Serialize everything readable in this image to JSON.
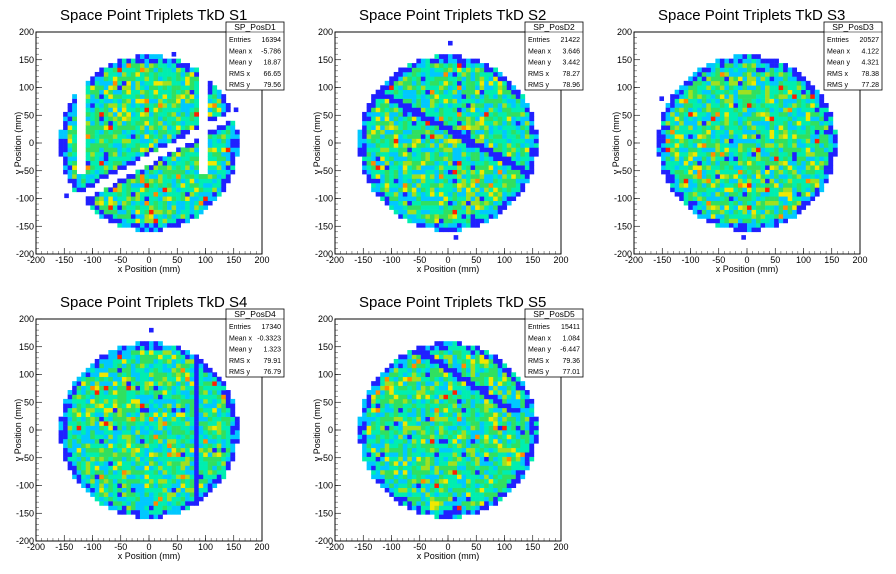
{
  "colors": {
    "palette": [
      "#2020ff",
      "#00c8ff",
      "#00eeb0",
      "#30e060",
      "#a0e020",
      "#f0e800",
      "#ff8c00",
      "#ff2000"
    ],
    "frame": "#000000",
    "background": "#ffffff"
  },
  "chart_data": [
    {
      "type": "heatmap",
      "title": "Space Point Triplets TkD S1",
      "xlabel": "x Position (mm)",
      "ylabel": "y Position (mm)",
      "xlim": [
        -200,
        200
      ],
      "ylim": [
        -200,
        200
      ],
      "xticks": [
        "-200",
        "-150",
        "-100",
        "-50",
        "0",
        "50",
        "100",
        "150",
        "200"
      ],
      "yticks": [
        "-200",
        "-150",
        "-100",
        "-50",
        "0",
        "50",
        "100",
        "150",
        "200"
      ],
      "stats": {
        "name": "SP_PosD1",
        "rows": [
          {
            "label": "Entries",
            "value": "16394"
          },
          {
            "label": "Mean x",
            "value": "-5.786"
          },
          {
            "label": "Mean y",
            "value": "18.87"
          },
          {
            "label": "RMS x",
            "value": "66.65"
          },
          {
            "label": "RMS y",
            "value": "79.56"
          }
        ]
      },
      "pattern": {
        "radius": 160,
        "gaps": [
          {
            "kind": "diag",
            "offset": -30,
            "width": 9
          },
          {
            "kind": "vert",
            "x": 95,
            "width": 8
          },
          {
            "kind": "vert",
            "x": -120,
            "width": 6
          }
        ],
        "strays": [
          [
            -150,
            -95
          ],
          [
            40,
            160
          ],
          [
            150,
            60
          ]
        ],
        "seed": 11
      }
    },
    {
      "type": "heatmap",
      "title": "Space Point Triplets TkD S2",
      "xlabel": "x Position (mm)",
      "ylabel": "y Position (mm)",
      "xlim": [
        -200,
        200
      ],
      "ylim": [
        -200,
        200
      ],
      "xticks": [
        "-200",
        "-150",
        "-100",
        "-50",
        "0",
        "50",
        "100",
        "150",
        "200"
      ],
      "yticks": [
        "-200",
        "-150",
        "-100",
        "-50",
        "0",
        "50",
        "100",
        "150",
        "200"
      ],
      "stats": {
        "name": "SP_PosD2",
        "rows": [
          {
            "label": "Entries",
            "value": "21422"
          },
          {
            "label": "Mean x",
            "value": "3.646"
          },
          {
            "label": "Mean y",
            "value": "3.442"
          },
          {
            "label": "RMS x",
            "value": "78.27"
          },
          {
            "label": "RMS y",
            "value": "78.96"
          }
        ]
      },
      "pattern": {
        "radius": 160,
        "gaps": [],
        "band": {
          "kind": "diag2",
          "offset": 25,
          "width": 7
        },
        "strays": [
          [
            0,
            180
          ],
          [
            10,
            -170
          ]
        ],
        "seed": 23
      }
    },
    {
      "type": "heatmap",
      "title": "Space Point Triplets TkD S3",
      "xlabel": "x Position (mm)",
      "ylabel": "y Position (mm)",
      "xlim": [
        -200,
        200
      ],
      "ylim": [
        -200,
        200
      ],
      "xticks": [
        "-200",
        "-150",
        "-100",
        "-50",
        "0",
        "50",
        "100",
        "150",
        "200"
      ],
      "yticks": [
        "-200",
        "-150",
        "-100",
        "-50",
        "0",
        "50",
        "100",
        "150",
        "200"
      ],
      "stats": {
        "name": "SP_PosD3",
        "rows": [
          {
            "label": "Entries",
            "value": "20527"
          },
          {
            "label": "Mean x",
            "value": "4.122"
          },
          {
            "label": "Mean y",
            "value": "4.321"
          },
          {
            "label": "RMS x",
            "value": "78.38"
          },
          {
            "label": "RMS y",
            "value": "77.28"
          }
        ]
      },
      "pattern": {
        "radius": 160,
        "gaps": [],
        "strays": [
          [
            -10,
            -170
          ],
          [
            -155,
            80
          ]
        ],
        "seed": 37
      }
    },
    {
      "type": "heatmap",
      "title": "Space Point Triplets TkD S4",
      "xlabel": "x Position (mm)",
      "ylabel": "y Position (mm)",
      "xlim": [
        -200,
        200
      ],
      "ylim": [
        -200,
        200
      ],
      "xticks": [
        "-200",
        "-150",
        "-100",
        "-50",
        "0",
        "50",
        "100",
        "150",
        "200"
      ],
      "yticks": [
        "-200",
        "-150",
        "-100",
        "-50",
        "0",
        "50",
        "100",
        "150",
        "200"
      ],
      "stats": {
        "name": "SP_PosD4",
        "rows": [
          {
            "label": "Entries",
            "value": "17340"
          },
          {
            "label": "Mean x",
            "value": "-0.3323"
          },
          {
            "label": "Mean y",
            "value": "1.323"
          },
          {
            "label": "RMS x",
            "value": "79.91"
          },
          {
            "label": "RMS y",
            "value": "76.79"
          }
        ]
      },
      "pattern": {
        "radius": 160,
        "gaps": [],
        "band": {
          "kind": "vert",
          "x": 85,
          "width": 7
        },
        "strays": [
          [
            0,
            180
          ]
        ],
        "seed": 53
      }
    },
    {
      "type": "heatmap",
      "title": "Space Point Triplets TkD S5",
      "xlabel": "x Position (mm)",
      "ylabel": "y Position (mm)",
      "xlim": [
        -200,
        200
      ],
      "ylim": [
        -200,
        200
      ],
      "xticks": [
        "-200",
        "-150",
        "-100",
        "-50",
        "0",
        "50",
        "100",
        "150",
        "200"
      ],
      "yticks": [
        "-200",
        "-150",
        "-100",
        "-50",
        "0",
        "50",
        "100",
        "150",
        "200"
      ],
      "stats": {
        "name": "SP_PosD5",
        "rows": [
          {
            "label": "Entries",
            "value": "15411"
          },
          {
            "label": "Mean x",
            "value": "1.084"
          },
          {
            "label": "Mean y",
            "value": "-6.447"
          },
          {
            "label": "RMS x",
            "value": "79.36"
          },
          {
            "label": "RMS y",
            "value": "77.01"
          }
        ]
      },
      "pattern": {
        "radius": 160,
        "gaps": [],
        "band": {
          "kind": "diag2b",
          "offset": 110,
          "width": 7
        },
        "strays": [],
        "seed": 71
      }
    }
  ]
}
